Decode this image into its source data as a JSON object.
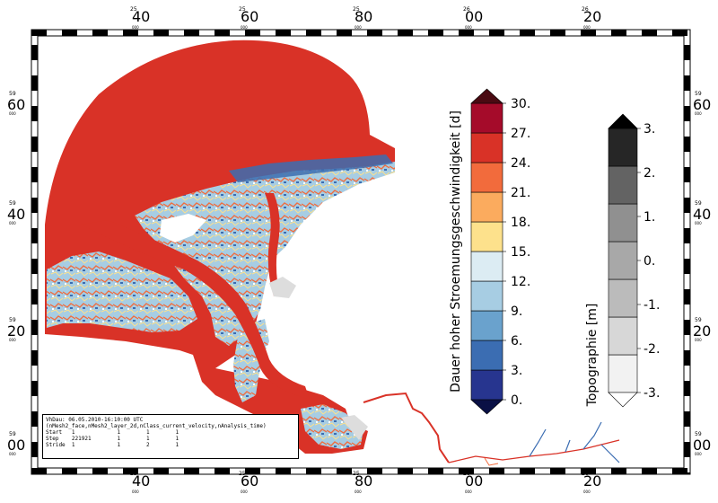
{
  "frame": {
    "top_ticks": [
      {
        "sub": "25",
        "main": "40"
      },
      {
        "sub": "25",
        "main": "60"
      },
      {
        "sub": "25",
        "main": "80"
      },
      {
        "sub": "26",
        "main": "00"
      },
      {
        "sub": "26",
        "main": "20"
      }
    ],
    "side_ticks": [
      {
        "sub": "59",
        "main": "60"
      },
      {
        "sub": "59",
        "main": "40"
      },
      {
        "sub": "59",
        "main": "20"
      },
      {
        "sub": "59",
        "main": "00"
      }
    ],
    "tick_sub_suffix": "000"
  },
  "legend_velocity": {
    "title": "Dauer hoher Stroemungsgeschwindigkeit [d]",
    "labels": [
      "0.",
      "3.",
      "6.",
      "9.",
      "12.",
      "15.",
      "18.",
      "21.",
      "24.",
      "27.",
      "30."
    ],
    "colors": [
      "#27358f",
      "#3b6db2",
      "#6aa2cd",
      "#a7cde3",
      "#dcecf3",
      "#fde18c",
      "#fbab5e",
      "#f26b3c",
      "#d93227",
      "#a50b2a"
    ],
    "under_color": "#0a1045",
    "over_color": "#4a0a12"
  },
  "legend_topo": {
    "title": "Topographie [m]",
    "labels": [
      "-3.",
      "-2.",
      "-1.",
      "0.",
      "1.",
      "2.",
      "3."
    ],
    "colors": [
      "#f2f2f2",
      "#d7d7d7",
      "#bbbbbb",
      "#a8a8a8",
      "#909090",
      "#636363",
      "#262626"
    ],
    "under_color": "#ffffff",
    "over_color": "#000000"
  },
  "info": {
    "line1": "VhDau: 06.05.2010-16:10:00 UTC",
    "line2": "(nMesh2_face,nMesh2_layer_2d,nClass_current_velocity,nAnalysis_time)",
    "rows": [
      {
        "label": "Start",
        "v": [
          "1",
          "1",
          "1",
          "1"
        ]
      },
      {
        "label": "Step",
        "v": [
          "221921",
          "1",
          "1",
          "1"
        ]
      },
      {
        "label": "Stride",
        "v": [
          "1",
          "1",
          "2",
          "1"
        ]
      }
    ]
  },
  "map_colors": {
    "deep": "#d93227",
    "shallow_mid": "#f26b3c",
    "tidal_flat": "#a7cde3",
    "tidal_flat_low": "#3b6db2",
    "dry": "#dddddd",
    "river": "#d93227"
  }
}
